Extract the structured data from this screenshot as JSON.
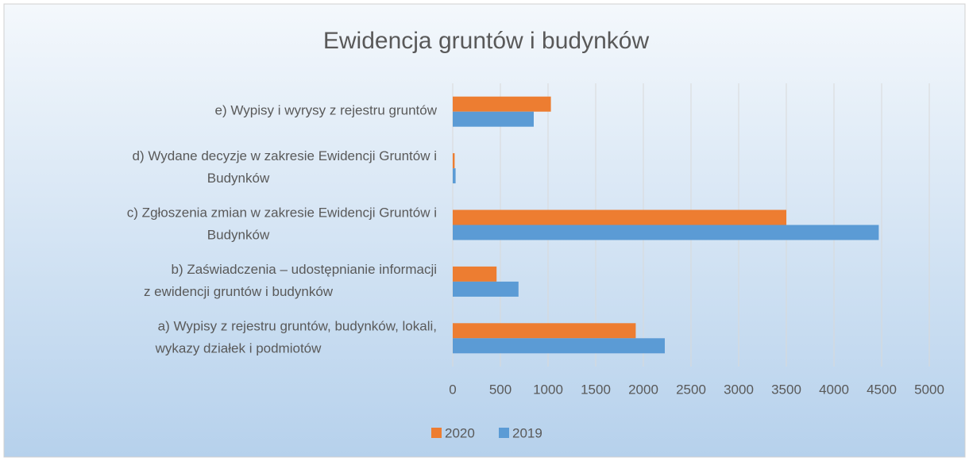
{
  "chart_data": {
    "type": "hbar",
    "title": "Ewidencja gruntów i budynków",
    "categories": [
      "e)    Wypisy i wyrysy z rejestru gruntów",
      "d)    Wydane decyzje w zakresie Ewidencji Gruntów i\nBudynków",
      "c)    Zgłoszenia zmian w zakresie Ewidencji Gruntów i\nBudynków",
      "b)    Zaświadczenia – udostępnianie informacji\nz  ewidencji gruntów i budynków",
      "a)    Wypisy  z rejestru gruntów, budynków, lokali,\nwykazy działek i podmiotów"
    ],
    "series": [
      {
        "name": "2020",
        "color": "#ed7d31",
        "values": [
          1030,
          20,
          3500,
          460,
          1920
        ]
      },
      {
        "name": "2019",
        "color": "#5b9bd5",
        "values": [
          850,
          30,
          4470,
          690,
          2225
        ]
      }
    ],
    "xlim": [
      0,
      5000
    ],
    "xticks": [
      0,
      500,
      1000,
      1500,
      2000,
      2500,
      3000,
      3500,
      4000,
      4500,
      5000
    ],
    "grid": true,
    "legend": "bottom"
  }
}
